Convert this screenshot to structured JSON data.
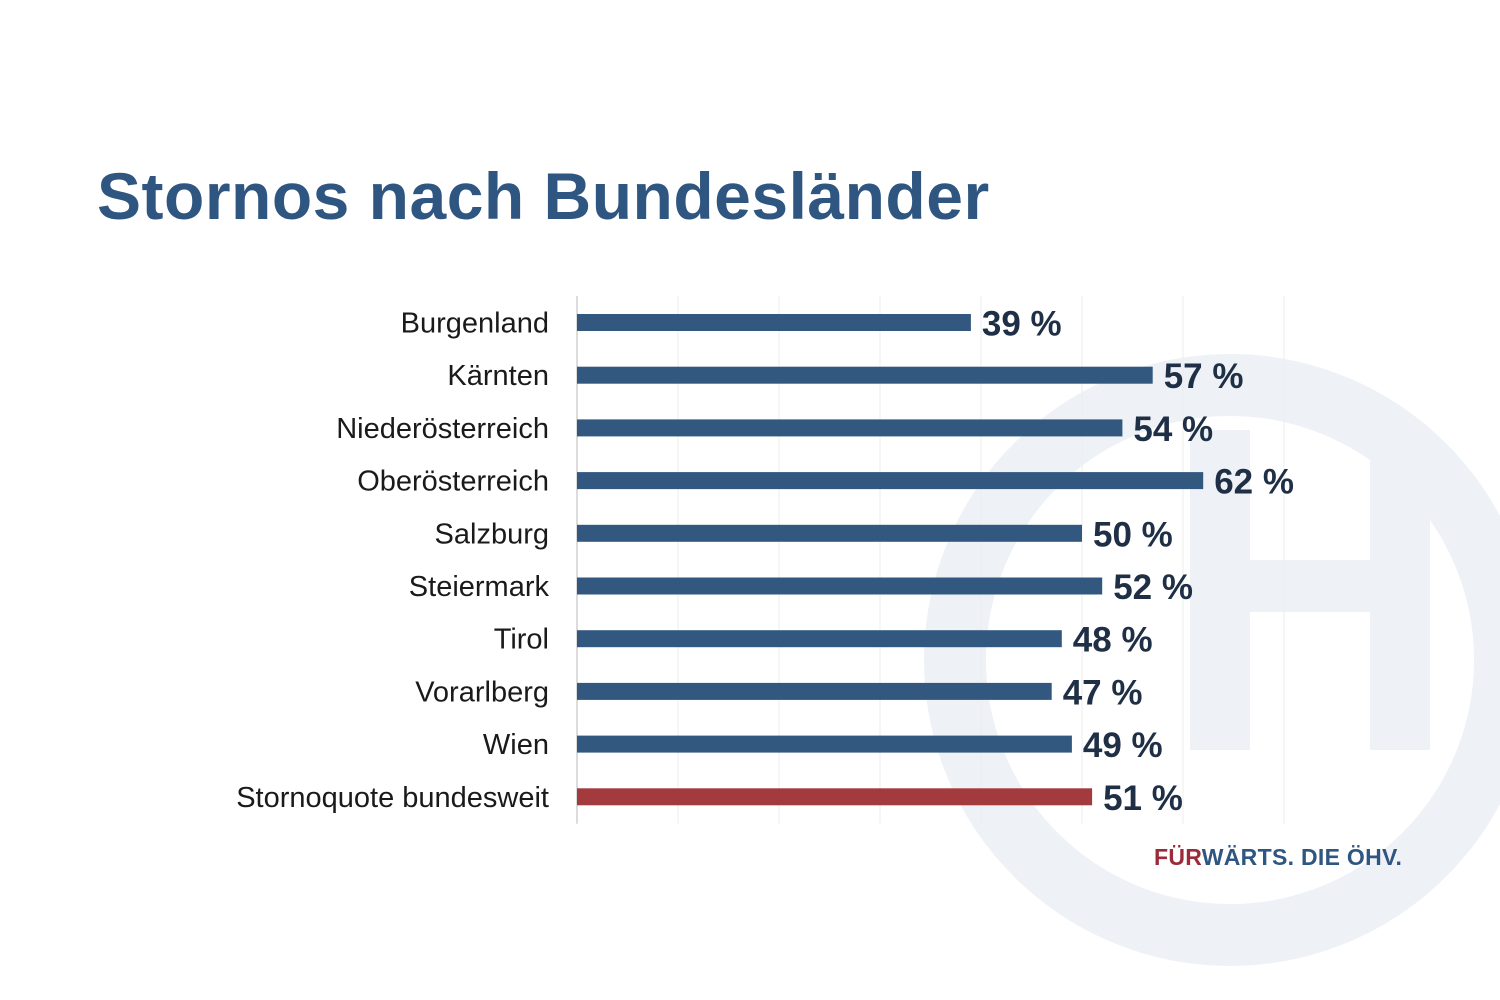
{
  "title": "Stornos nach Bundesländer",
  "logo": {
    "part_red": "FÜR",
    "part_blue": "WÄRTS. DIE ÖHV."
  },
  "colors": {
    "bar": "#33587f",
    "highlight": "#a33a3d",
    "title": "#2f5681",
    "label": "#1a1a1a",
    "value": "#1f2f45"
  },
  "chart_data": {
    "type": "bar",
    "orientation": "horizontal",
    "categories": [
      "Burgenland",
      "Kärnten",
      "Niederösterreich",
      "Oberösterreich",
      "Salzburg",
      "Steiermark",
      "Tirol",
      "Vorarlberg",
      "Wien",
      "Stornoquote bundesweit"
    ],
    "values": [
      39,
      57,
      54,
      62,
      50,
      52,
      48,
      47,
      49,
      51
    ],
    "value_labels": [
      "39 %",
      "57 %",
      "54 %",
      "62 %",
      "50 %",
      "52 %",
      "48 %",
      "47 %",
      "49 %",
      "51 %"
    ],
    "highlight_index": 9,
    "xlim": [
      0,
      70
    ],
    "grid": true,
    "legend": "none",
    "xlabel": "",
    "ylabel": ""
  }
}
